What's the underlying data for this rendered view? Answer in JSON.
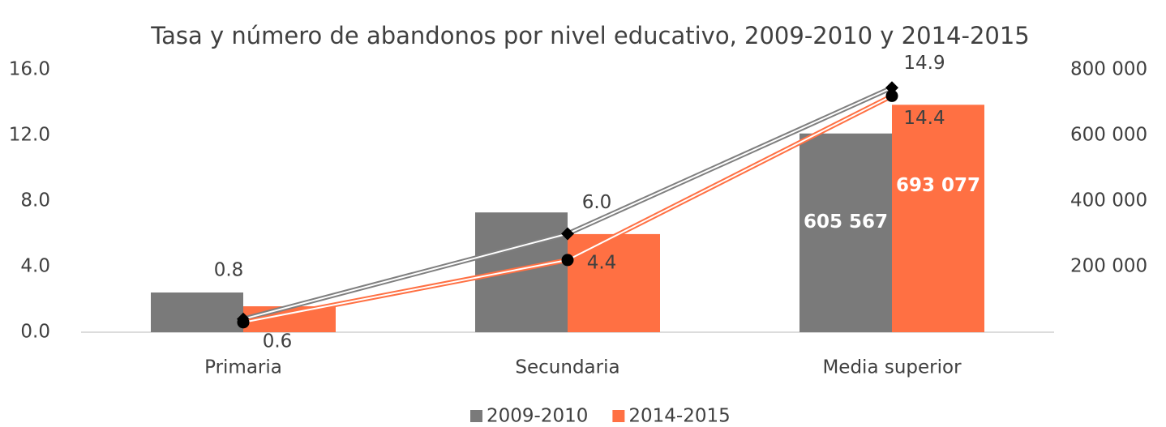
{
  "chart_data": {
    "type": "bar-line",
    "title": "Tasa y número de abandonos por nivel educativo, 2009-2010 y 2014-2015",
    "categories": [
      "Primaria",
      "Secundaria",
      "Media superior"
    ],
    "series": [
      {
        "name": "2009-2010",
        "type": "bar",
        "axis": "y2",
        "color": "#7a7a7a",
        "values": [
          121000,
          365000,
          605567
        ],
        "value_labels": [
          null,
          null,
          "605 567"
        ]
      },
      {
        "name": "2014-2015",
        "type": "bar",
        "axis": "y2",
        "color": "#ff7043",
        "values": [
          79000,
          299000,
          693077
        ],
        "value_labels": [
          null,
          null,
          "693 077"
        ]
      },
      {
        "type": "line",
        "marker": "diamond",
        "color": "#7f7f7f",
        "values": [
          0.8,
          6.0,
          14.9
        ],
        "value_labels": [
          "0.8",
          "6.0",
          "14.9"
        ]
      },
      {
        "type": "line",
        "marker": "circle",
        "color": "#ff7043",
        "values": [
          0.6,
          4.4,
          14.4
        ],
        "value_labels": [
          "0.6",
          "4.4",
          "14.4"
        ]
      }
    ],
    "ylim": [
      0,
      16
    ],
    "yticks": [
      {
        "value": 0,
        "label": "0.0"
      },
      {
        "value": 4,
        "label": "4.0"
      },
      {
        "value": 8,
        "label": "8.0"
      },
      {
        "value": 12,
        "label": "12.0"
      },
      {
        "value": 16,
        "label": "16.0"
      }
    ],
    "y2lim": [
      0,
      800000
    ],
    "y2ticks": [
      {
        "value": 200000,
        "label": "200 000"
      },
      {
        "value": 400000,
        "label": "400 000"
      },
      {
        "value": 600000,
        "label": "600 000"
      },
      {
        "value": 800000,
        "label": "800 000"
      }
    ],
    "legend": "bottom"
  }
}
